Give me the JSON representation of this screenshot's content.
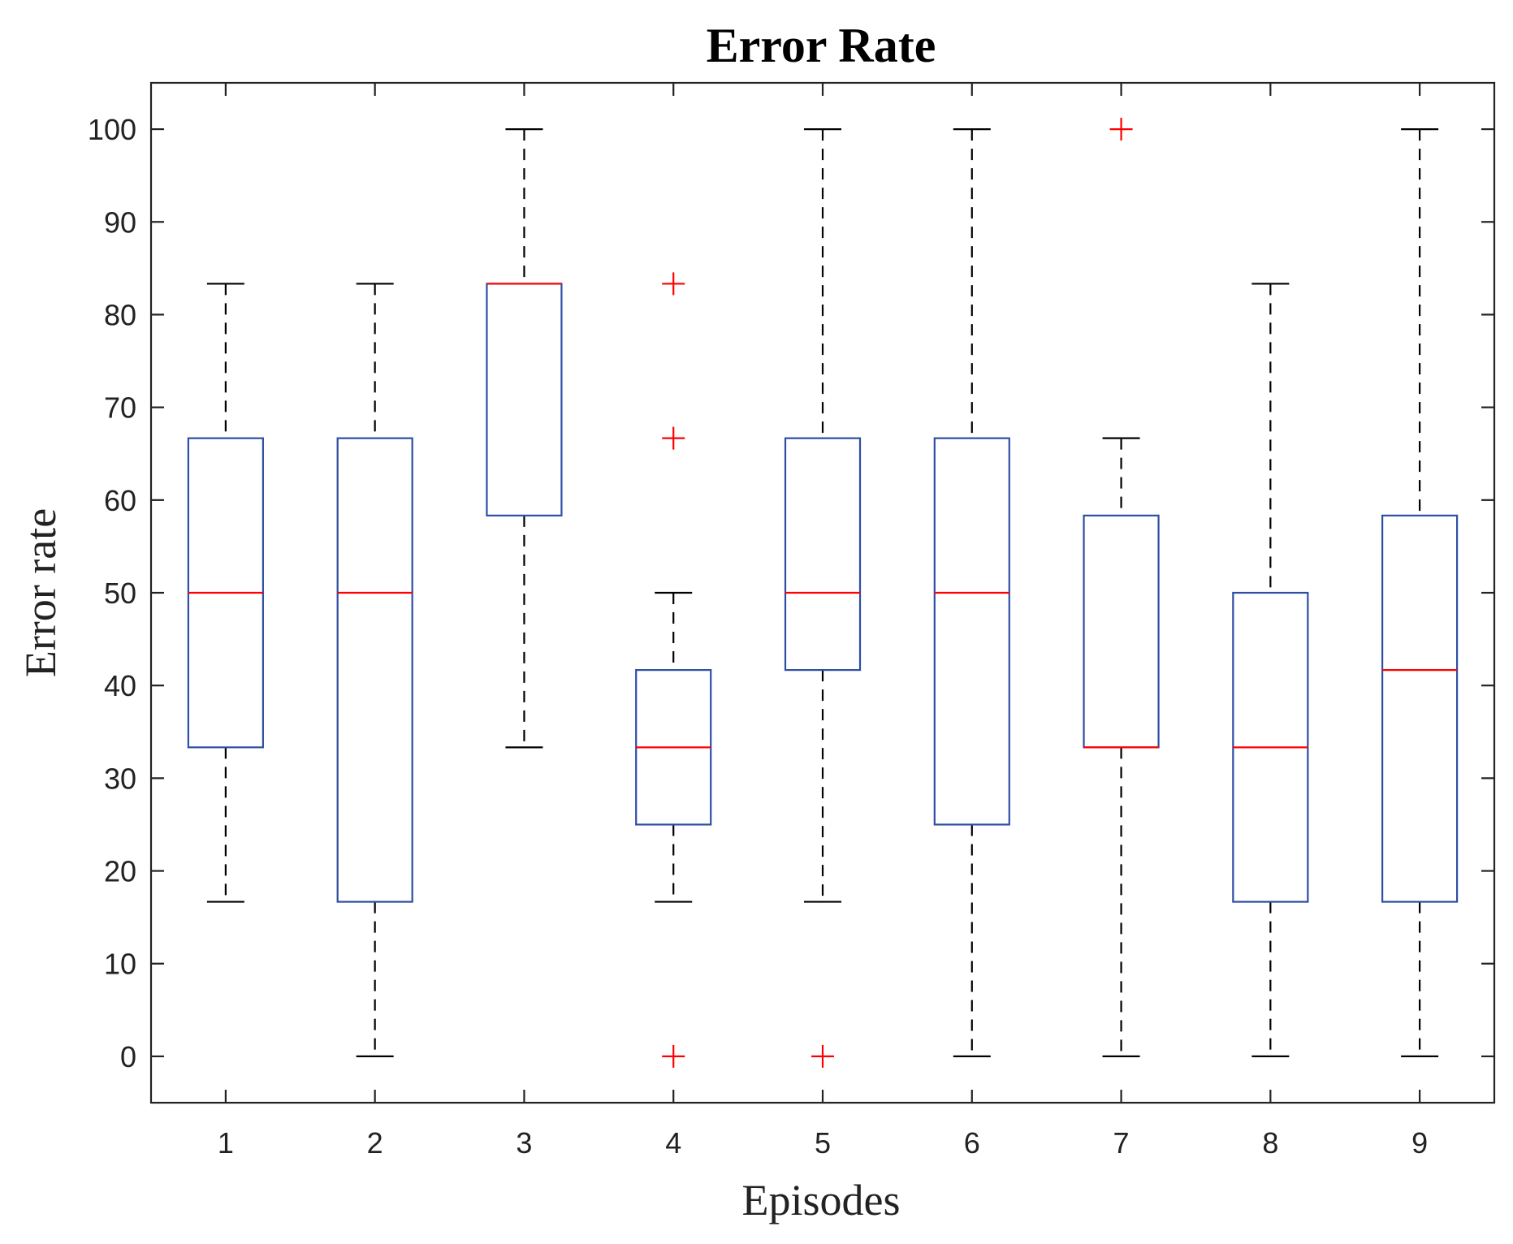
{
  "chart_data": {
    "type": "box",
    "title": "Error Rate",
    "xlabel": "Episodes",
    "ylabel": "Error rate",
    "categories": [
      "1",
      "2",
      "3",
      "4",
      "5",
      "6",
      "7",
      "8",
      "9"
    ],
    "ylim": [
      -5,
      105
    ],
    "yticks": [
      0,
      10,
      20,
      30,
      40,
      50,
      60,
      70,
      80,
      90,
      100
    ],
    "grid": false,
    "boxes": [
      {
        "category": "1",
        "whisker_low": 16.67,
        "q1": 33.33,
        "median": 50,
        "q3": 66.67,
        "whisker_high": 83.33,
        "outliers": []
      },
      {
        "category": "2",
        "whisker_low": 0,
        "q1": 16.67,
        "median": 50,
        "q3": 66.67,
        "whisker_high": 83.33,
        "outliers": []
      },
      {
        "category": "3",
        "whisker_low": 33.33,
        "q1": 58.33,
        "median": 83.33,
        "q3": 83.33,
        "whisker_high": 100,
        "outliers": []
      },
      {
        "category": "4",
        "whisker_low": 16.67,
        "q1": 25,
        "median": 33.33,
        "q3": 41.67,
        "whisker_high": 50,
        "outliers": [
          0,
          66.67,
          83.33
        ]
      },
      {
        "category": "5",
        "whisker_low": 16.67,
        "q1": 41.67,
        "median": 50,
        "q3": 66.67,
        "whisker_high": 100,
        "outliers": [
          0
        ]
      },
      {
        "category": "6",
        "whisker_low": 0,
        "q1": 25,
        "median": 50,
        "q3": 66.67,
        "whisker_high": 100,
        "outliers": []
      },
      {
        "category": "7",
        "whisker_low": 0,
        "q1": 33.33,
        "median": 33.33,
        "q3": 58.33,
        "whisker_high": 66.67,
        "outliers": [
          100
        ]
      },
      {
        "category": "8",
        "whisker_low": 0,
        "q1": 16.67,
        "median": 33.33,
        "q3": 50,
        "whisker_high": 83.33,
        "outliers": []
      },
      {
        "category": "9",
        "whisker_low": 0,
        "q1": 16.67,
        "median": 41.67,
        "q3": 58.33,
        "whisker_high": 100,
        "outliers": []
      }
    ],
    "colors": {
      "box": "#2e4ea3",
      "median": "#ff0000",
      "whisker": "#000000",
      "outlier": "#ff0000",
      "axes": "#222222"
    }
  }
}
